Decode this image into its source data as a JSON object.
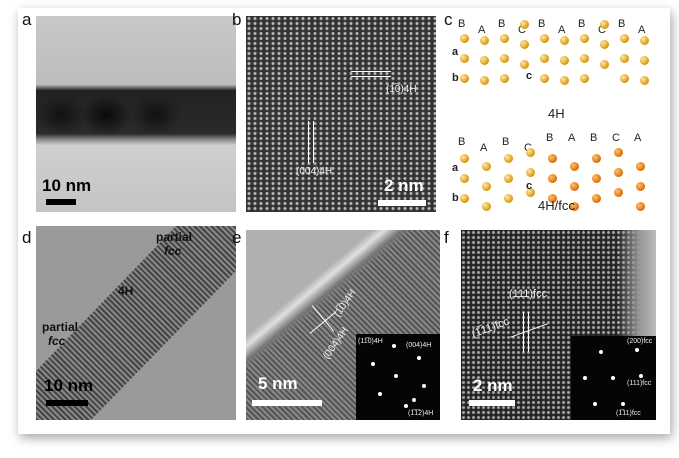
{
  "panels": {
    "a": {
      "label": "a",
      "scale": "10 nm"
    },
    "b": {
      "label": "b",
      "scale": "2 nm",
      "plane1": "(1̅0)4H",
      "plane2": "(004)4H"
    },
    "c": {
      "label": "c",
      "top_layers": [
        "B",
        "A",
        "B",
        "C",
        "B",
        "A",
        "B",
        "C",
        "B",
        "A"
      ],
      "top_title": "4H",
      "bottom_layers": [
        "B",
        "A",
        "B",
        "C",
        "B",
        "A",
        "B",
        "C",
        "A"
      ],
      "bottom_title": "4H/fcc",
      "axes": [
        "a",
        "b",
        "c"
      ]
    },
    "d": {
      "label": "d",
      "scale": "10 nm",
      "text_partial1": "partial",
      "text_fcc1": "fcc",
      "text_4h": "4H",
      "text_partial2": "partial",
      "text_fcc2": "fcc"
    },
    "e": {
      "label": "e",
      "scale": "5 nm",
      "plane1": "(1̅0)4H",
      "plane2": "(004)4H",
      "fft": [
        "(11̅0)4H",
        "(004)4H",
        "(1̅1̅2)4H"
      ]
    },
    "f": {
      "label": "f",
      "scale": "2 nm",
      "plane1": "(111)fcc",
      "plane2": "(1̅11)fcc",
      "fft": [
        "(200)fcc",
        "(111)fcc",
        "(1̅11)fcc"
      ]
    }
  }
}
